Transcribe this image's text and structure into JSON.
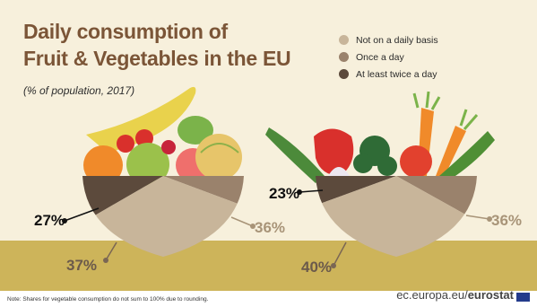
{
  "title_line1": "Daily consumption of",
  "title_line2": "Fruit & Vegetables in the EU",
  "subtitle": "(% of population, 2017)",
  "legend": [
    {
      "label": "Not on a daily basis",
      "color": "#c8b59a"
    },
    {
      "label": "Once a day",
      "color": "#9a826c"
    },
    {
      "label": "At least twice a day",
      "color": "#5c4a3c"
    }
  ],
  "note": "Note: Shares for vegetable consumption do not sum to 100% due to rounding.",
  "source_prefix": "ec.europa.eu/",
  "source_brand": "eurostat",
  "chart_data": [
    {
      "type": "pie",
      "categories": [
        "At least twice a day",
        "Once a day",
        "Not on a daily basis"
      ],
      "values": [
        27,
        37,
        36
      ],
      "labels": [
        "27%",
        "37%",
        "36%"
      ]
    },
    {
      "type": "pie",
      "categories": [
        "At least twice a day",
        "Once a day",
        "Not on a daily basis"
      ],
      "values": [
        23,
        40,
        36
      ],
      "labels": [
        "23%",
        "40%",
        "36%"
      ]
    }
  ]
}
